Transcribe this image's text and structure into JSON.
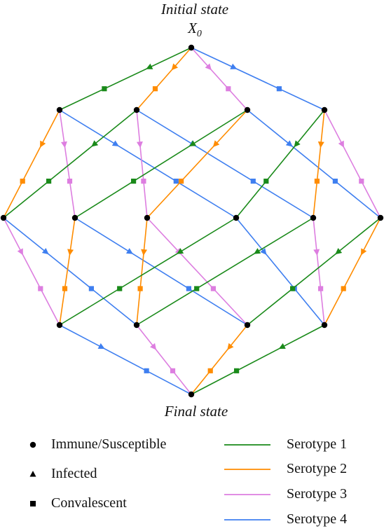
{
  "labels": {
    "initial": "Initial state",
    "x0": "X",
    "x0_sub": "0",
    "final": "Final state"
  },
  "legend": {
    "markers": [
      {
        "shape": "circle",
        "label": "Immune/Susceptible"
      },
      {
        "shape": "triangle",
        "label": "Infected"
      },
      {
        "shape": "square",
        "label": "Convalescent"
      }
    ],
    "serotypes": [
      {
        "label": "Serotype 1",
        "color": "#1a8a1a"
      },
      {
        "label": "Serotype 2",
        "color": "#ff8c00"
      },
      {
        "label": "Serotype 3",
        "color": "#dd7ee0"
      },
      {
        "label": "Serotype 4",
        "color": "#3f7ff0"
      }
    ]
  },
  "colors": {
    "s1": "#1a8a1a",
    "s2": "#ff8c00",
    "s3": "#dd7ee0",
    "s4": "#3f7ff0",
    "node": "#000000"
  }
}
